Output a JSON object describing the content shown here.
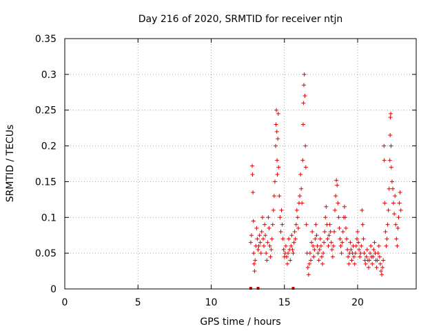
{
  "chart_data": {
    "type": "scatter",
    "title": "Day 216 of 2020, SRMTID for receiver ntjn",
    "xlabel": "GPS time / hours",
    "ylabel": "SRMTID / TECUs",
    "xlim": [
      0,
      24
    ],
    "ylim": [
      0,
      0.35
    ],
    "xticks": [
      0,
      5,
      10,
      15,
      20
    ],
    "yticks": [
      0,
      0.05,
      0.1,
      0.15,
      0.2,
      0.25,
      0.3,
      0.35
    ],
    "xtick_labels": [
      "0",
      "5",
      "10",
      "15",
      "20"
    ],
    "ytick_labels": [
      "0",
      "0.05",
      "0.1",
      "0.15",
      "0.2",
      "0.25",
      "0.3",
      "0.35"
    ],
    "grid": true,
    "marker": "plus",
    "color": "#e00000",
    "baseline_markers_x": [
      12.7,
      13.2,
      15.6
    ],
    "series": [
      {
        "name": "",
        "points": [
          [
            12.7,
            0.065
          ],
          [
            12.75,
            0.075
          ],
          [
            12.8,
            0.172
          ],
          [
            12.82,
            0.16
          ],
          [
            12.85,
            0.135
          ],
          [
            12.88,
            0.095
          ],
          [
            12.9,
            0.05
          ],
          [
            12.93,
            0.035
          ],
          [
            12.96,
            0.025
          ],
          [
            13.0,
            0.04
          ],
          [
            13.05,
            0.06
          ],
          [
            13.1,
            0.085
          ],
          [
            13.15,
            0.07
          ],
          [
            13.2,
            0.055
          ],
          [
            13.25,
            0.06
          ],
          [
            13.3,
            0.075
          ],
          [
            13.35,
            0.065
          ],
          [
            13.4,
            0.05
          ],
          [
            13.45,
            0.08
          ],
          [
            13.5,
            0.1
          ],
          [
            13.55,
            0.07
          ],
          [
            13.6,
            0.06
          ],
          [
            13.65,
            0.09
          ],
          [
            13.7,
            0.075
          ],
          [
            13.75,
            0.05
          ],
          [
            13.8,
            0.04
          ],
          [
            13.85,
            0.065
          ],
          [
            13.9,
            0.1
          ],
          [
            13.95,
            0.085
          ],
          [
            14.0,
            0.06
          ],
          [
            14.05,
            0.045
          ],
          [
            14.1,
            0.055
          ],
          [
            14.15,
            0.07
          ],
          [
            14.2,
            0.09
          ],
          [
            14.25,
            0.11
          ],
          [
            14.3,
            0.13
          ],
          [
            14.35,
            0.15
          ],
          [
            14.4,
            0.2
          ],
          [
            14.42,
            0.23
          ],
          [
            14.45,
            0.25
          ],
          [
            14.48,
            0.22
          ],
          [
            14.5,
            0.18
          ],
          [
            14.52,
            0.16
          ],
          [
            14.55,
            0.21
          ],
          [
            14.58,
            0.245
          ],
          [
            14.6,
            0.17
          ],
          [
            14.65,
            0.13
          ],
          [
            14.7,
            0.1
          ],
          [
            14.75,
            0.08
          ],
          [
            14.8,
            0.11
          ],
          [
            14.85,
            0.09
          ],
          [
            14.9,
            0.07
          ],
          [
            14.95,
            0.055
          ],
          [
            15.0,
            0.045
          ],
          [
            15.05,
            0.05
          ],
          [
            15.1,
            0.06
          ],
          [
            15.15,
            0.045
          ],
          [
            15.2,
            0.035
          ],
          [
            15.25,
            0.05
          ],
          [
            15.3,
            0.07
          ],
          [
            15.35,
            0.055
          ],
          [
            15.4,
            0.04
          ],
          [
            15.45,
            0.06
          ],
          [
            15.5,
            0.075
          ],
          [
            15.55,
            0.055
          ],
          [
            15.6,
            0.05
          ],
          [
            15.65,
            0.065
          ],
          [
            15.7,
            0.08
          ],
          [
            15.75,
            0.07
          ],
          [
            15.8,
            0.09
          ],
          [
            15.85,
            0.11
          ],
          [
            15.9,
            0.1
          ],
          [
            15.95,
            0.085
          ],
          [
            16.0,
            0.12
          ],
          [
            16.05,
            0.13
          ],
          [
            16.1,
            0.16
          ],
          [
            16.15,
            0.14
          ],
          [
            16.2,
            0.12
          ],
          [
            16.25,
            0.18
          ],
          [
            16.28,
            0.23
          ],
          [
            16.3,
            0.26
          ],
          [
            16.33,
            0.285
          ],
          [
            16.36,
            0.3
          ],
          [
            16.4,
            0.27
          ],
          [
            16.43,
            0.2
          ],
          [
            16.46,
            0.17
          ],
          [
            16.5,
            0.09
          ],
          [
            16.55,
            0.05
          ],
          [
            16.6,
            0.03
          ],
          [
            16.65,
            0.02
          ],
          [
            16.7,
            0.035
          ],
          [
            16.75,
            0.05
          ],
          [
            16.8,
            0.04
          ],
          [
            16.85,
            0.065
          ],
          [
            16.9,
            0.08
          ],
          [
            16.95,
            0.06
          ],
          [
            17.0,
            0.045
          ],
          [
            17.05,
            0.055
          ],
          [
            17.1,
            0.07
          ],
          [
            17.15,
            0.09
          ],
          [
            17.2,
            0.075
          ],
          [
            17.25,
            0.06
          ],
          [
            17.3,
            0.05
          ],
          [
            17.35,
            0.04
          ],
          [
            17.4,
            0.055
          ],
          [
            17.45,
            0.07
          ],
          [
            17.5,
            0.06
          ],
          [
            17.55,
            0.045
          ],
          [
            17.6,
            0.035
          ],
          [
            17.65,
            0.05
          ],
          [
            17.7,
            0.065
          ],
          [
            17.75,
            0.08
          ],
          [
            17.8,
            0.1
          ],
          [
            17.85,
            0.115
          ],
          [
            17.9,
            0.09
          ],
          [
            17.95,
            0.07
          ],
          [
            18.0,
            0.06
          ],
          [
            18.05,
            0.075
          ],
          [
            18.1,
            0.09
          ],
          [
            18.15,
            0.08
          ],
          [
            18.2,
            0.065
          ],
          [
            18.25,
            0.055
          ],
          [
            18.3,
            0.045
          ],
          [
            18.35,
            0.06
          ],
          [
            18.4,
            0.08
          ],
          [
            18.45,
            0.11
          ],
          [
            18.5,
            0.13
          ],
          [
            18.55,
            0.152
          ],
          [
            18.6,
            0.145
          ],
          [
            18.65,
            0.12
          ],
          [
            18.7,
            0.1
          ],
          [
            18.75,
            0.085
          ],
          [
            18.8,
            0.07
          ],
          [
            18.85,
            0.06
          ],
          [
            18.9,
            0.05
          ],
          [
            18.95,
            0.065
          ],
          [
            19.0,
            0.08
          ],
          [
            19.05,
            0.1
          ],
          [
            19.1,
            0.115
          ],
          [
            19.15,
            0.1
          ],
          [
            19.2,
            0.085
          ],
          [
            19.25,
            0.07
          ],
          [
            19.3,
            0.055
          ],
          [
            19.35,
            0.045
          ],
          [
            19.4,
            0.035
          ],
          [
            19.45,
            0.05
          ],
          [
            19.5,
            0.065
          ],
          [
            19.55,
            0.055
          ],
          [
            19.6,
            0.04
          ],
          [
            19.65,
            0.05
          ],
          [
            19.7,
            0.06
          ],
          [
            19.75,
            0.045
          ],
          [
            19.8,
            0.035
          ],
          [
            19.85,
            0.05
          ],
          [
            19.9,
            0.06
          ],
          [
            19.95,
            0.07
          ],
          [
            20.0,
            0.08
          ],
          [
            20.05,
            0.065
          ],
          [
            20.1,
            0.055
          ],
          [
            20.15,
            0.045
          ],
          [
            20.2,
            0.05
          ],
          [
            20.25,
            0.06
          ],
          [
            20.3,
            0.11
          ],
          [
            20.35,
            0.09
          ],
          [
            20.4,
            0.07
          ],
          [
            20.45,
            0.05
          ],
          [
            20.5,
            0.04
          ],
          [
            20.55,
            0.035
          ],
          [
            20.6,
            0.045
          ],
          [
            20.65,
            0.055
          ],
          [
            20.7,
            0.04
          ],
          [
            20.75,
            0.03
          ],
          [
            20.8,
            0.04
          ],
          [
            20.85,
            0.05
          ],
          [
            20.9,
            0.06
          ],
          [
            20.95,
            0.045
          ],
          [
            21.0,
            0.035
          ],
          [
            21.05,
            0.045
          ],
          [
            21.1,
            0.055
          ],
          [
            21.15,
            0.065
          ],
          [
            21.2,
            0.05
          ],
          [
            21.25,
            0.04
          ],
          [
            21.3,
            0.03
          ],
          [
            21.35,
            0.04
          ],
          [
            21.4,
            0.05
          ],
          [
            21.45,
            0.06
          ],
          [
            21.5,
            0.045
          ],
          [
            21.55,
            0.035
          ],
          [
            21.6,
            0.025
          ],
          [
            21.65,
            0.02
          ],
          [
            21.7,
            0.03
          ],
          [
            21.75,
            0.04
          ],
          [
            21.8,
            0.2
          ],
          [
            21.82,
            0.18
          ],
          [
            21.85,
            0.12
          ],
          [
            21.9,
            0.08
          ],
          [
            21.95,
            0.06
          ],
          [
            22.0,
            0.07
          ],
          [
            22.05,
            0.09
          ],
          [
            22.1,
            0.11
          ],
          [
            22.15,
            0.14
          ],
          [
            22.2,
            0.18
          ],
          [
            22.22,
            0.215
          ],
          [
            22.24,
            0.24
          ],
          [
            22.26,
            0.245
          ],
          [
            22.28,
            0.2
          ],
          [
            22.3,
            0.17
          ],
          [
            22.35,
            0.15
          ],
          [
            22.4,
            0.14
          ],
          [
            22.45,
            0.12
          ],
          [
            22.5,
            0.105
          ],
          [
            22.55,
            0.13
          ],
          [
            22.6,
            0.09
          ],
          [
            22.65,
            0.07
          ],
          [
            22.7,
            0.06
          ],
          [
            22.75,
            0.085
          ],
          [
            22.8,
            0.1
          ],
          [
            22.85,
            0.12
          ],
          [
            22.9,
            0.135
          ],
          [
            22.95,
            0.11
          ]
        ]
      }
    ]
  }
}
